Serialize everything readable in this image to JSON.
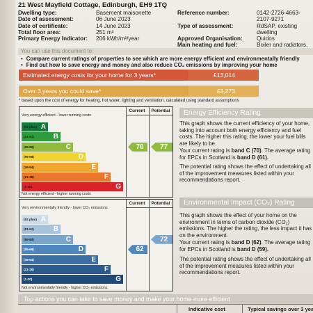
{
  "address": "21 West Mayfield Cottage, Edinburgh, EH9 1TQ",
  "info_left": [
    {
      "key": "Dwelling type:",
      "value": "Basement maisonette"
    },
    {
      "key": "Date of assessment:",
      "value": "06 June 2023"
    },
    {
      "key": "Date of certificate:",
      "value": "14 June 2023"
    },
    {
      "key": "Total floor area:",
      "value": "251 m²"
    },
    {
      "key": "Primary Energy Indicator:",
      "value": "206 kWh/m²/year"
    }
  ],
  "info_right": [
    {
      "key": "Reference number:",
      "value": "0142-2726-4663-2107-9271"
    },
    {
      "key": "Type of assessment:",
      "value": "RdSAP, existing dwelling"
    },
    {
      "key": "Approved Organisation:",
      "value": "Quidos"
    },
    {
      "key": "Main heating and fuel:",
      "value": "Boiler and radiators, mains gas"
    }
  ],
  "use_heading": "You can use this document to:",
  "bullets": [
    "Compare current ratings of properties to see which are more energy efficient and environmentally friendly",
    "Find out how to save energy and money and also reduce CO₂ emissions by improving your home"
  ],
  "costs": {
    "estimated_label": "Estimated energy costs for your home for 3 years*",
    "estimated_value": "£13,014",
    "saving_label": "Over 3 years you could save*",
    "saving_value": "£3,273"
  },
  "footnote": "* based upon the cost of energy for heating, hot water, lighting and ventilation, calculated using standard assumptions",
  "colors": {
    "band_a": "#127a3a",
    "band_b": "#2e9c3b",
    "band_c": "#8fbc3c",
    "band_d": "#f1d430",
    "band_e": "#f1a72f",
    "band_f": "#e9762a",
    "band_g": "#d8232b",
    "env_a": "#ccdce9",
    "env_b": "#a6c2dc",
    "env_c": "#7ba5cd",
    "env_d": "#4f86bd",
    "env_e": "#3a6fa6",
    "env_f": "#2b5a8e",
    "env_g": "#1f4a78"
  },
  "efficiency_chart": {
    "col_current": "Current",
    "col_potential": "Potential",
    "top_caption": "Very energy efficient - lower running costs",
    "bottom_caption": "Not energy efficient - higher running costs",
    "bands": [
      {
        "range": "(92 plus)",
        "letter": "A"
      },
      {
        "range": "(81-91)",
        "letter": "B"
      },
      {
        "range": "(69-80)",
        "letter": "C"
      },
      {
        "range": "(55-68)",
        "letter": "D"
      },
      {
        "range": "(39-54)",
        "letter": "E"
      },
      {
        "range": "(21-38)",
        "letter": "F"
      },
      {
        "range": "(1-20)",
        "letter": "G"
      }
    ],
    "current": 70,
    "potential": 77
  },
  "environment_chart": {
    "col_current": "Current",
    "col_potential": "Potential",
    "top_caption": "Very environmentally friendly - lower CO₂ emissions",
    "bottom_caption": "Not environmentally friendly - higher CO₂ emissions",
    "bands": [
      {
        "range": "(92 plus)",
        "letter": "A"
      },
      {
        "range": "(81-91)",
        "letter": "B"
      },
      {
        "range": "(69-80)",
        "letter": "C"
      },
      {
        "range": "(55-68)",
        "letter": "D"
      },
      {
        "range": "(39-54)",
        "letter": "E"
      },
      {
        "range": "(21-38)",
        "letter": "F"
      },
      {
        "range": "(1-20)",
        "letter": "G"
      }
    ],
    "current": 62,
    "potential": 72
  },
  "efficiency_section": {
    "heading": "Energy Efficiency Rating",
    "p1": "This graph shows the current efficiency of your home, taking into account both energy efficiency and fuel costs. The higher this rating, the lower your fuel bills are likely to be.",
    "p2_pre": "Your current rating is ",
    "p2_bold": "band C (70)",
    "p2_mid": ". The average rating for EPCs in Scotland is ",
    "p2_bold2": "band D (61).",
    "p3": "The potential rating shows the effect of undertaking all of the improvement measures listed within your recommendations report."
  },
  "environment_section": {
    "heading": "Environmental Impact (CO₂) Rating",
    "p1": "This graph shows the effect of your home on the environment in terms of carbon dioxide (CO₂) emissions. The higher the rating, the less impact it has on the environment.",
    "p2_pre": "Your current rating is ",
    "p2_bold": "band D (62)",
    "p2_mid": ". The average rating for EPCs in Scotland is ",
    "p2_bold2": "band D (59).",
    "p3": "The potential rating shows the effect of undertaking all of the improvement measures listed within your recommendations report."
  },
  "bottom": {
    "heading": "Top actions you can take to save money and make your home more efficient",
    "col_cost": "Indicative cost",
    "col_savings": "Typical savings over 3 years"
  }
}
